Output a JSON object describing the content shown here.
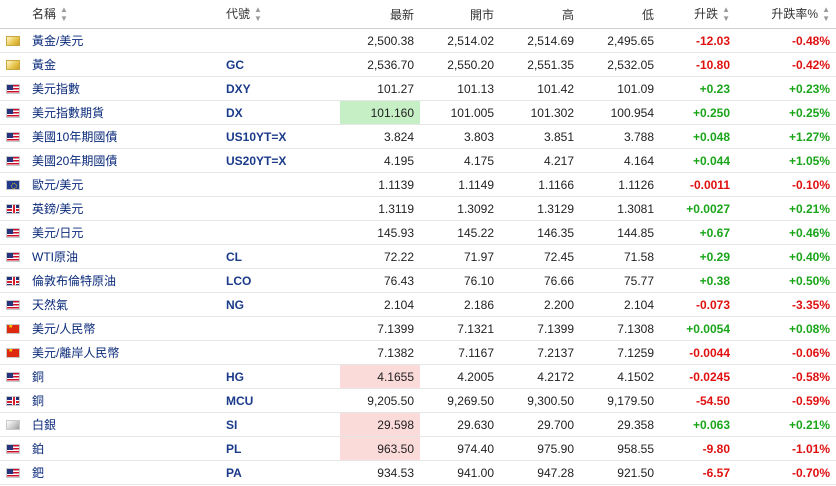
{
  "header": {
    "name": "名稱",
    "code": "代號",
    "last": "最新",
    "open": "開市",
    "high": "高",
    "low": "低",
    "change": "升跌",
    "change_pct": "升跌率%"
  },
  "rows": [
    {
      "flag": "gold",
      "name": "黃金/美元",
      "code": "",
      "last": "2,500.38",
      "open": "2,514.02",
      "high": "2,514.69",
      "low": "2,495.65",
      "change": "-12.03",
      "pct": "-0.48%",
      "dir": "down",
      "hl": ""
    },
    {
      "flag": "gold",
      "name": "黃金",
      "code": "GC",
      "last": "2,536.70",
      "open": "2,550.20",
      "high": "2,551.35",
      "low": "2,532.05",
      "change": "-10.80",
      "pct": "-0.42%",
      "dir": "down",
      "hl": ""
    },
    {
      "flag": "us",
      "name": "美元指數",
      "code": "DXY",
      "last": "101.27",
      "open": "101.13",
      "high": "101.42",
      "low": "101.09",
      "change": "+0.23",
      "pct": "+0.23%",
      "dir": "up",
      "hl": ""
    },
    {
      "flag": "us",
      "name": "美元指數期貨",
      "code": "DX",
      "last": "101.160",
      "open": "101.005",
      "high": "101.302",
      "low": "100.954",
      "change": "+0.250",
      "pct": "+0.25%",
      "dir": "up",
      "hl": "green"
    },
    {
      "flag": "us",
      "name": "美國10年期國債",
      "code": "US10YT=X",
      "last": "3.824",
      "open": "3.803",
      "high": "3.851",
      "low": "3.788",
      "change": "+0.048",
      "pct": "+1.27%",
      "dir": "up",
      "hl": ""
    },
    {
      "flag": "us",
      "name": "美國20年期國債",
      "code": "US20YT=X",
      "last": "4.195",
      "open": "4.175",
      "high": "4.217",
      "low": "4.164",
      "change": "+0.044",
      "pct": "+1.05%",
      "dir": "up",
      "hl": ""
    },
    {
      "flag": "eu",
      "name": "歐元/美元",
      "code": "",
      "last": "1.1139",
      "open": "1.1149",
      "high": "1.1166",
      "low": "1.1126",
      "change": "-0.0011",
      "pct": "-0.10%",
      "dir": "down",
      "hl": ""
    },
    {
      "flag": "uk",
      "name": "英鎊/美元",
      "code": "",
      "last": "1.3119",
      "open": "1.3092",
      "high": "1.3129",
      "low": "1.3081",
      "change": "+0.0027",
      "pct": "+0.21%",
      "dir": "up",
      "hl": ""
    },
    {
      "flag": "us",
      "name": "美元/日元",
      "code": "",
      "last": "145.93",
      "open": "145.22",
      "high": "146.35",
      "low": "144.85",
      "change": "+0.67",
      "pct": "+0.46%",
      "dir": "up",
      "hl": ""
    },
    {
      "flag": "us",
      "name": "WTI原油",
      "code": "CL",
      "last": "72.22",
      "open": "71.97",
      "high": "72.45",
      "low": "71.58",
      "change": "+0.29",
      "pct": "+0.40%",
      "dir": "up",
      "hl": ""
    },
    {
      "flag": "uk",
      "name": "倫敦布倫特原油",
      "code": "LCO",
      "last": "76.43",
      "open": "76.10",
      "high": "76.66",
      "low": "75.77",
      "change": "+0.38",
      "pct": "+0.50%",
      "dir": "up",
      "hl": ""
    },
    {
      "flag": "us",
      "name": "天然氣",
      "code": "NG",
      "last": "2.104",
      "open": "2.186",
      "high": "2.200",
      "low": "2.104",
      "change": "-0.073",
      "pct": "-3.35%",
      "dir": "down",
      "hl": ""
    },
    {
      "flag": "cn",
      "name": "美元/人民幣",
      "code": "",
      "last": "7.1399",
      "open": "7.1321",
      "high": "7.1399",
      "low": "7.1308",
      "change": "+0.0054",
      "pct": "+0.08%",
      "dir": "up",
      "hl": ""
    },
    {
      "flag": "cn",
      "name": "美元/離岸人民幣",
      "code": "",
      "last": "7.1382",
      "open": "7.1167",
      "high": "7.2137",
      "low": "7.1259",
      "change": "-0.0044",
      "pct": "-0.06%",
      "dir": "down",
      "hl": ""
    },
    {
      "flag": "us",
      "name": "銅",
      "code": "HG",
      "last": "4.1655",
      "open": "4.2005",
      "high": "4.2172",
      "low": "4.1502",
      "change": "-0.0245",
      "pct": "-0.58%",
      "dir": "down",
      "hl": "red"
    },
    {
      "flag": "uk",
      "name": "銅",
      "code": "MCU",
      "last": "9,205.50",
      "open": "9,269.50",
      "high": "9,300.50",
      "low": "9,179.50",
      "change": "-54.50",
      "pct": "-0.59%",
      "dir": "down",
      "hl": ""
    },
    {
      "flag": "silver",
      "name": "白銀",
      "code": "SI",
      "last": "29.598",
      "open": "29.630",
      "high": "29.700",
      "low": "29.358",
      "change": "+0.063",
      "pct": "+0.21%",
      "dir": "up",
      "hl": "red"
    },
    {
      "flag": "us",
      "name": "鉑",
      "code": "PL",
      "last": "963.50",
      "open": "974.40",
      "high": "975.90",
      "low": "958.55",
      "change": "-9.80",
      "pct": "-1.01%",
      "dir": "down",
      "hl": "red"
    },
    {
      "flag": "us",
      "name": "鈀",
      "code": "PA",
      "last": "934.53",
      "open": "941.00",
      "high": "947.28",
      "low": "921.50",
      "change": "-6.57",
      "pct": "-0.70%",
      "dir": "down",
      "hl": ""
    }
  ]
}
